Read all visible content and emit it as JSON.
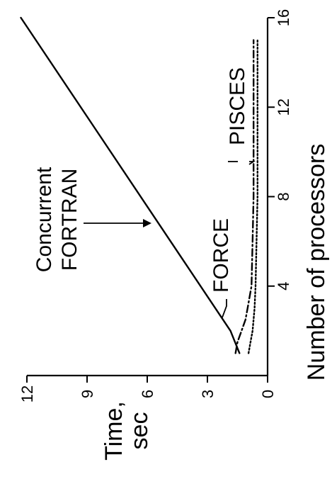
{
  "chart_data": {
    "type": "line",
    "xlabel": "Number of processors",
    "ylabel_line1": "Time,",
    "ylabel_line2": "sec",
    "xlim": [
      0,
      16
    ],
    "ylim": [
      0,
      12
    ],
    "x_ticks": [
      "4",
      "8",
      "12",
      "16"
    ],
    "y_ticks": [
      "0",
      "3",
      "6",
      "9",
      "12"
    ],
    "grid": false,
    "orientation": "rotated-90-ccw",
    "series": [
      {
        "name": "Concurrent FORTRAN",
        "label_line1": "Concurrent",
        "label_line2": "FORTRAN",
        "style": "solid",
        "x": [
          1,
          2,
          16
        ],
        "y": [
          1.4,
          1.85,
          12.3
        ]
      },
      {
        "name": "FORCE",
        "style": "dashdot",
        "x": [
          1,
          1.5,
          2,
          2.5,
          3,
          3.5,
          4,
          6,
          8,
          10,
          12,
          15
        ],
        "y": [
          1.6,
          1.5,
          1.3,
          1.1,
          1.0,
          0.9,
          0.8,
          0.75,
          0.7,
          0.7,
          0.7,
          0.7
        ]
      },
      {
        "name": "PISCES",
        "style": "dotted",
        "x": [
          1,
          1.5,
          2,
          3,
          4,
          6,
          8,
          10,
          12,
          15
        ],
        "y": [
          0.95,
          0.85,
          0.75,
          0.65,
          0.6,
          0.55,
          0.5,
          0.5,
          0.5,
          0.5
        ]
      }
    ]
  }
}
